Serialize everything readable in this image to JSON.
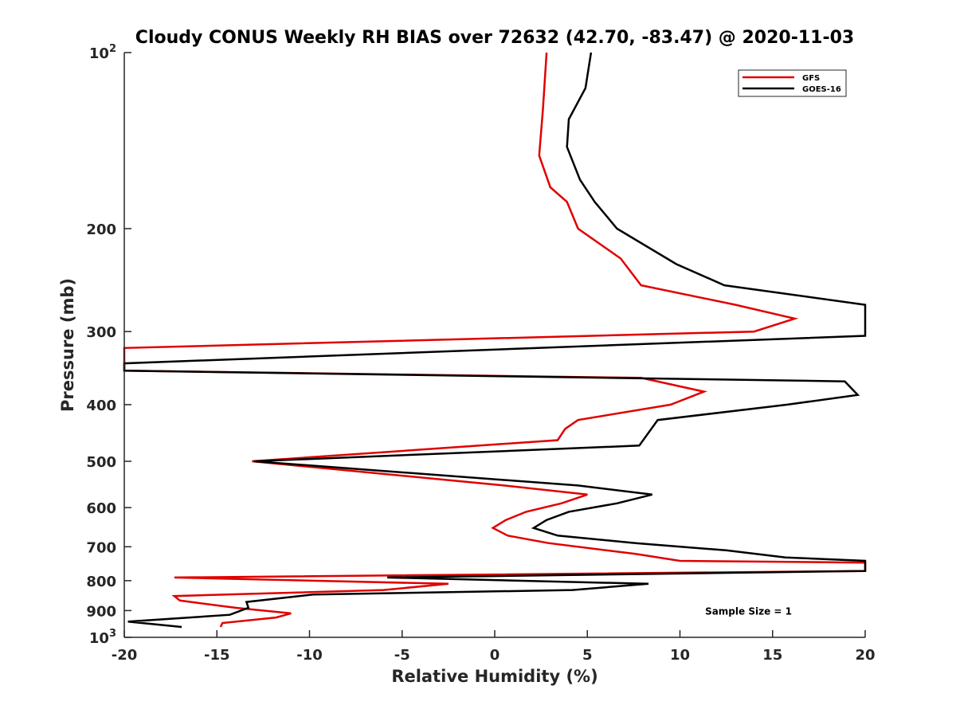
{
  "chart_data": {
    "type": "line",
    "title": "Cloudy CONUS Weekly RH BIAS over 72632 (42.70, -83.47) @ 2020-11-03",
    "xlabel": "Relative Humidity (%)",
    "ylabel": "Pressure (mb)",
    "xlim": [
      -20,
      20
    ],
    "ylim": [
      100,
      1000
    ],
    "yscale": "log",
    "yreversed": true,
    "grid": false,
    "legend_position": "top-right",
    "x_ticks": [
      {
        "value": -20,
        "label": "-20"
      },
      {
        "value": -15,
        "label": "-15"
      },
      {
        "value": -10,
        "label": "-10"
      },
      {
        "value": -5,
        "label": "-5"
      },
      {
        "value": 0,
        "label": "0"
      },
      {
        "value": 5,
        "label": "5"
      },
      {
        "value": 10,
        "label": "10"
      },
      {
        "value": 15,
        "label": "15"
      },
      {
        "value": 20,
        "label": "20"
      }
    ],
    "y_ticks": [
      {
        "value": 100,
        "base": "10",
        "exp": "2"
      },
      {
        "value": 200,
        "base": "200",
        "exp": ""
      },
      {
        "value": 300,
        "base": "300",
        "exp": ""
      },
      {
        "value": 400,
        "base": "400",
        "exp": ""
      },
      {
        "value": 500,
        "base": "500",
        "exp": ""
      },
      {
        "value": 600,
        "base": "600",
        "exp": ""
      },
      {
        "value": 700,
        "base": "700",
        "exp": ""
      },
      {
        "value": 800,
        "base": "800",
        "exp": ""
      },
      {
        "value": 900,
        "base": "900",
        "exp": ""
      },
      {
        "value": 1000,
        "base": "10",
        "exp": "3"
      }
    ],
    "series": [
      {
        "name": "GFS",
        "color": "#e00000",
        "points": [
          [
            2.8,
            100
          ],
          [
            2.6,
            125
          ],
          [
            2.4,
            150
          ],
          [
            3.0,
            170
          ],
          [
            3.9,
            180
          ],
          [
            4.5,
            200
          ],
          [
            6.8,
            225
          ],
          [
            7.9,
            250
          ],
          [
            13.0,
            270
          ],
          [
            16.2,
            285
          ],
          [
            14.0,
            300
          ],
          [
            -20.0,
            320
          ],
          [
            -20.0,
            350
          ],
          [
            7.9,
            360
          ],
          [
            11.3,
            380
          ],
          [
            9.5,
            400
          ],
          [
            4.5,
            425
          ],
          [
            3.8,
            440
          ],
          [
            3.4,
            460
          ],
          [
            -13.1,
            500
          ],
          [
            0.5,
            550
          ],
          [
            5.0,
            570
          ],
          [
            3.6,
            590
          ],
          [
            1.7,
            610
          ],
          [
            0.6,
            630
          ],
          [
            -0.1,
            650
          ],
          [
            0.7,
            670
          ],
          [
            2.9,
            690
          ],
          [
            7.6,
            720
          ],
          [
            10.0,
            740
          ],
          [
            20.0,
            745
          ],
          [
            20.0,
            770
          ],
          [
            -17.3,
            790
          ],
          [
            -2.5,
            810
          ],
          [
            -6.0,
            830
          ],
          [
            -17.3,
            850
          ],
          [
            -17.0,
            865
          ],
          [
            -14.0,
            890
          ],
          [
            -11.0,
            910
          ],
          [
            -11.8,
            925
          ],
          [
            -14.7,
            945
          ],
          [
            -14.8,
            960
          ]
        ]
      },
      {
        "name": "GOES-16",
        "color": "#000000",
        "points": [
          [
            5.2,
            100
          ],
          [
            4.9,
            115
          ],
          [
            4.0,
            130
          ],
          [
            3.9,
            145
          ],
          [
            4.6,
            165
          ],
          [
            5.4,
            180
          ],
          [
            6.6,
            200
          ],
          [
            9.8,
            230
          ],
          [
            12.4,
            250
          ],
          [
            20.0,
            270
          ],
          [
            20.0,
            305
          ],
          [
            -20.0,
            340
          ],
          [
            -20.0,
            350
          ],
          [
            18.9,
            365
          ],
          [
            19.6,
            385
          ],
          [
            15.8,
            400
          ],
          [
            8.8,
            425
          ],
          [
            7.8,
            470
          ],
          [
            -13.0,
            500
          ],
          [
            4.5,
            550
          ],
          [
            8.5,
            570
          ],
          [
            6.6,
            590
          ],
          [
            4.0,
            610
          ],
          [
            2.8,
            630
          ],
          [
            2.1,
            650
          ],
          [
            3.4,
            670
          ],
          [
            7.6,
            690
          ],
          [
            12.5,
            710
          ],
          [
            15.7,
            730
          ],
          [
            20.0,
            740
          ],
          [
            20.0,
            770
          ],
          [
            -5.8,
            790
          ],
          [
            8.3,
            810
          ],
          [
            4.2,
            830
          ],
          [
            -9.8,
            845
          ],
          [
            -13.4,
            870
          ],
          [
            -13.3,
            890
          ],
          [
            -14.3,
            915
          ],
          [
            -19.8,
            940
          ],
          [
            -16.9,
            960
          ]
        ]
      }
    ],
    "annotations": [
      {
        "text": "Sample Size = 1",
        "x": 13.7,
        "y": 900
      }
    ]
  }
}
